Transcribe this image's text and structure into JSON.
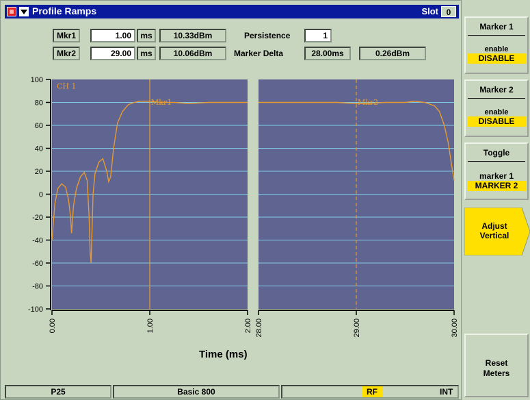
{
  "window": {
    "title": "Profile Ramps",
    "slot_label": "Slot",
    "slot_value": "0"
  },
  "markers": {
    "mkr1": {
      "label": "Mkr1",
      "value": "1.00",
      "unit": "ms",
      "level": "10.33dBm"
    },
    "mkr2": {
      "label": "Mkr2",
      "value": "29.00",
      "unit": "ms",
      "level": "10.06dBm"
    },
    "persistence_label": "Persistence",
    "persistence_value": "1",
    "delta_label": "Marker Delta",
    "delta_time": "28.00ms",
    "delta_level": "0.26dBm"
  },
  "chart_data": {
    "type": "line",
    "channel_label": "CH 1",
    "xlabel": "Time (ms)",
    "ylim": [
      -100,
      100
    ],
    "yticks": [
      "100",
      "80",
      "60",
      "40",
      "20",
      "0",
      "-20",
      "-40",
      "-60",
      "-80",
      "-100"
    ],
    "panels": [
      {
        "xlim": [
          0,
          2
        ],
        "xticks": [
          "0.00",
          "1.00",
          "2.00"
        ],
        "marker": {
          "label": "Mkr1",
          "x": 1.0,
          "style": "solid"
        },
        "series": [
          {
            "x": [
              0,
              0.03,
              0.06,
              0.1,
              0.14,
              0.17,
              0.19,
              0.2,
              0.22,
              0.25,
              0.29,
              0.33,
              0.36,
              0.38,
              0.39,
              0.4,
              0.42,
              0.44,
              0.48,
              0.52,
              0.56,
              0.58,
              0.6,
              0.63,
              0.67,
              0.72,
              0.78,
              0.84,
              0.9,
              0.95,
              1.0,
              1.1,
              1.25,
              1.4,
              1.6,
              1.8,
              2.0
            ],
            "y": [
              -40,
              -8,
              5,
              9,
              6,
              -5,
              -20,
              -34,
              -10,
              5,
              15,
              19,
              12,
              -20,
              -50,
              -60,
              0,
              18,
              28,
              31,
              20,
              11,
              15,
              40,
              62,
              72,
              78,
              80,
              81,
              81,
              81,
              80,
              80,
              79,
              80,
              80,
              80
            ]
          }
        ]
      },
      {
        "xlim": [
          28,
          30
        ],
        "xticks": [
          "28.00",
          "29.00",
          "30.00"
        ],
        "marker": {
          "label": "Mkr2",
          "x": 29.0,
          "style": "dashed"
        },
        "series": [
          {
            "x": [
              28.0,
              28.4,
              28.8,
              29.0,
              29.1,
              29.3,
              29.5,
              29.6,
              29.7,
              29.8,
              29.85,
              29.9,
              29.94,
              29.97,
              30.0
            ],
            "y": [
              80,
              80,
              80,
              79,
              79,
              80,
              80,
              81,
              80,
              77,
              72,
              60,
              45,
              28,
              12
            ]
          }
        ]
      }
    ],
    "colors": {
      "trace": "#e89a30",
      "grid": "#7fd0e8",
      "plot_bg": "#5f6590",
      "marker": "#e89a30"
    }
  },
  "status_bar": {
    "mode": "P25",
    "config": "Basic 800",
    "rf": "RF",
    "ref": "INT"
  },
  "softkeys": {
    "marker1": {
      "title": "Marker 1",
      "sub": "enable",
      "state": "DISABLE"
    },
    "marker2": {
      "title": "Marker 2",
      "sub": "enable",
      "state": "DISABLE"
    },
    "toggle": {
      "title": "Toggle",
      "sub": "marker 1",
      "state": "MARKER 2"
    },
    "adjust": {
      "line1": "Adjust",
      "line2": "Vertical"
    },
    "reset": {
      "line1": "Reset",
      "line2": "Meters"
    }
  }
}
